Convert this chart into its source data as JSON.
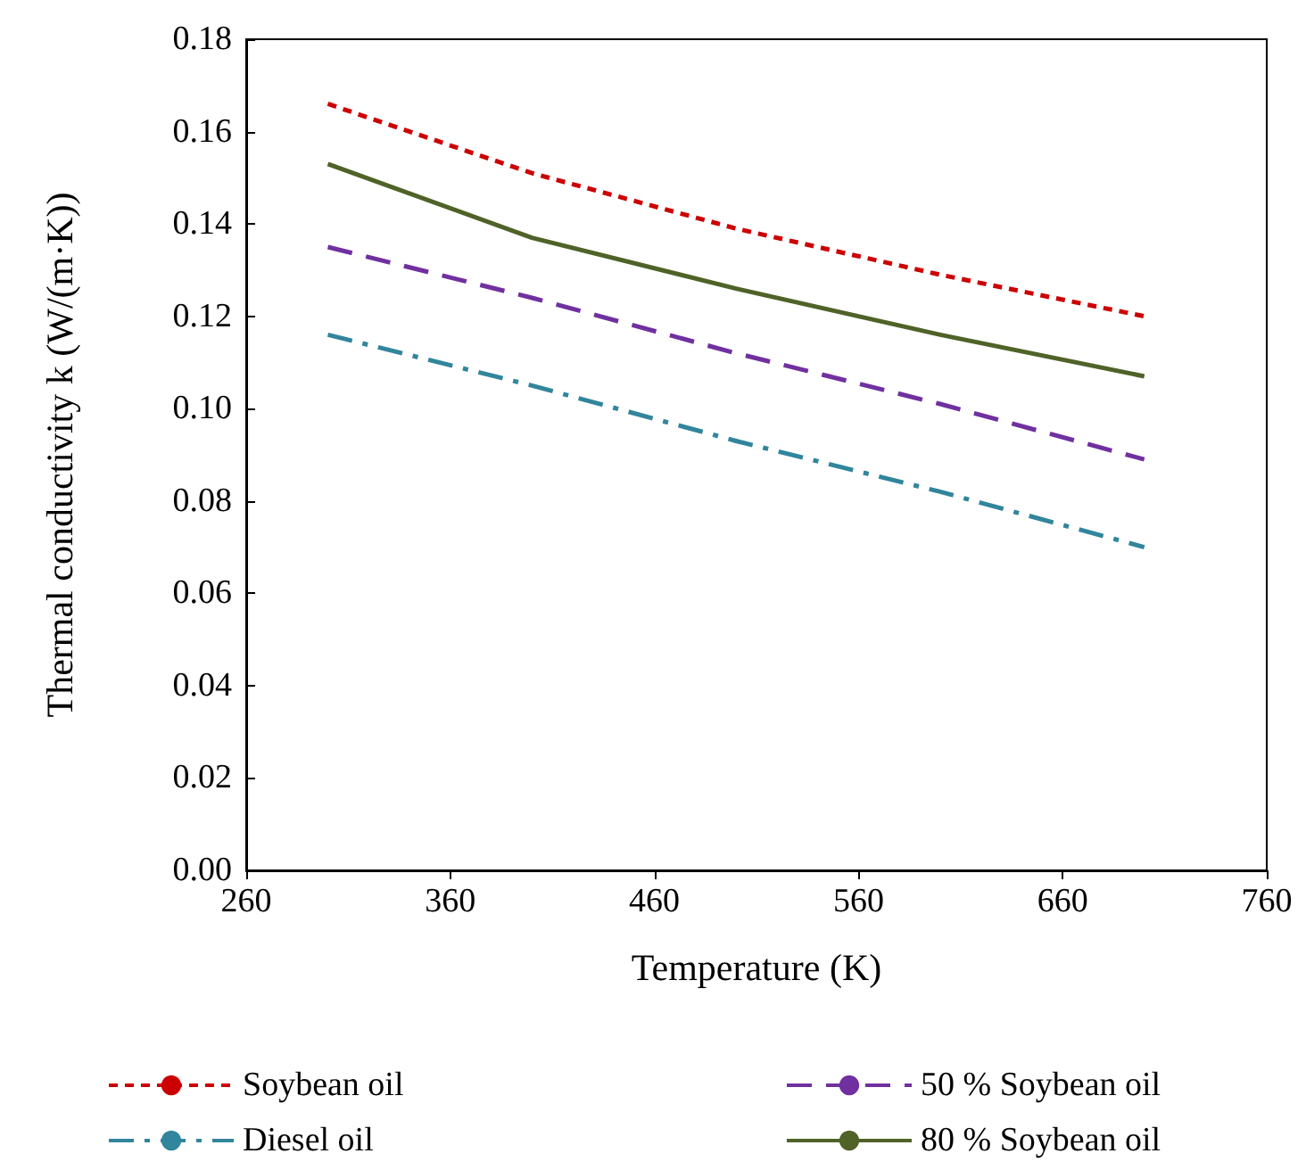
{
  "chart_data": {
    "type": "line",
    "xlabel": "Temperature (K)",
    "ylabel": "Thermal conductivity k (W/(m·K))",
    "x": [
      300,
      400,
      500,
      600,
      700
    ],
    "series": [
      {
        "name": "Soybean oil",
        "color": "#cc0000",
        "line_style": "dotted",
        "values": [
          0.166,
          0.151,
          0.139,
          0.129,
          0.12
        ]
      },
      {
        "name": "50 % Soybean oil",
        "color": "#7030a0",
        "line_style": "dashed",
        "values": [
          0.135,
          0.124,
          0.112,
          0.101,
          0.089
        ]
      },
      {
        "name": "Diesel oil",
        "color": "#31859c",
        "line_style": "dashdot",
        "values": [
          0.116,
          0.105,
          0.093,
          0.082,
          0.07
        ]
      },
      {
        "name": "80 % Soybean oil",
        "color": "#4f6228",
        "line_style": "solid",
        "values": [
          0.153,
          0.137,
          0.126,
          0.116,
          0.107
        ]
      }
    ],
    "xlim": [
      260,
      760
    ],
    "xticks": [
      260,
      360,
      460,
      560,
      660,
      760
    ],
    "ylim": [
      0,
      0.18
    ],
    "yticks": [
      {
        "value": 0,
        "label": "0.00"
      },
      0.02,
      0.04,
      0.06,
      0.08,
      {
        "value": 0.1,
        "label": "0.10"
      },
      0.12,
      0.14,
      0.16,
      0.18
    ],
    "grid": false,
    "legend": "bottom",
    "marker": "none"
  }
}
